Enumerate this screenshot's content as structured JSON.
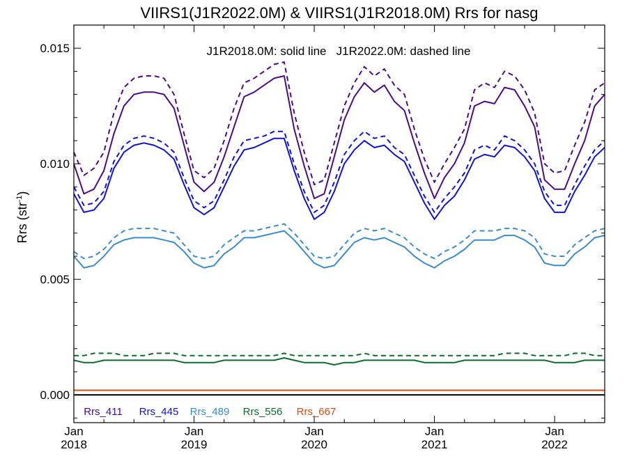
{
  "chart_data": {
    "type": "line",
    "title": "VIIRS1(J1R2022.0M) & VIIRS1(J1R2018.0M)  Rrs for nasg",
    "ylabel": "Rrs (str",
    "ylabel_sup": "-1",
    "ylabel_close": ")",
    "annotation": "J1R2018.0M: solid line   J1R2022.0M: dashed line",
    "ylim": [
      -0.0012,
      0.016
    ],
    "xlim": [
      0,
      53
    ],
    "yticks": [
      {
        "value": 0.0,
        "label": "0.000"
      },
      {
        "value": 0.005,
        "label": "0.005"
      },
      {
        "value": 0.01,
        "label": "0.010"
      },
      {
        "value": 0.015,
        "label": "0.015"
      }
    ],
    "xticks": [
      {
        "value": 0,
        "month": "Jan",
        "year": "2018"
      },
      {
        "value": 12,
        "month": "Jan",
        "year": "2019"
      },
      {
        "value": 24,
        "month": "Jan",
        "year": "2020"
      },
      {
        "value": 36,
        "month": "Jan",
        "year": "2021"
      },
      {
        "value": 48,
        "month": "Jan",
        "year": "2022"
      }
    ],
    "zero_line": 0.0,
    "series": [
      {
        "name": "Rrs_411",
        "color": "#4b0a8c",
        "solid": [
          0.01,
          0.0087,
          0.0089,
          0.0097,
          0.0113,
          0.0125,
          0.013,
          0.0131,
          0.0131,
          0.013,
          0.0124,
          0.0108,
          0.0092,
          0.0088,
          0.0092,
          0.0103,
          0.0116,
          0.0129,
          0.0131,
          0.0134,
          0.0137,
          0.0138,
          0.0115,
          0.0099,
          0.0085,
          0.0087,
          0.0103,
          0.0119,
          0.0129,
          0.0135,
          0.0131,
          0.0134,
          0.0127,
          0.0123,
          0.0109,
          0.0096,
          0.0085,
          0.0094,
          0.01,
          0.0109,
          0.0125,
          0.0127,
          0.0126,
          0.0133,
          0.0132,
          0.0125,
          0.0116,
          0.0093,
          0.0089,
          0.0089,
          0.01,
          0.011,
          0.0125,
          0.013
        ],
        "dashed": [
          0.0105,
          0.0095,
          0.0098,
          0.0105,
          0.0122,
          0.0133,
          0.0137,
          0.0138,
          0.0138,
          0.0137,
          0.013,
          0.0113,
          0.0097,
          0.0094,
          0.0098,
          0.011,
          0.0124,
          0.0135,
          0.0137,
          0.014,
          0.0143,
          0.0144,
          0.0122,
          0.0105,
          0.0091,
          0.0093,
          0.0109,
          0.0125,
          0.0135,
          0.0142,
          0.0138,
          0.0141,
          0.0134,
          0.013,
          0.0115,
          0.0102,
          0.0092,
          0.01,
          0.0107,
          0.0115,
          0.0132,
          0.0135,
          0.0133,
          0.014,
          0.0138,
          0.0132,
          0.0122,
          0.01,
          0.0096,
          0.0097,
          0.0108,
          0.0118,
          0.0132,
          0.0135
        ]
      },
      {
        "name": "Rrs_445",
        "color": "#1010e0",
        "solid": [
          0.0087,
          0.0079,
          0.008,
          0.0085,
          0.0098,
          0.0105,
          0.0108,
          0.0109,
          0.0108,
          0.0106,
          0.0102,
          0.0091,
          0.0081,
          0.0078,
          0.0081,
          0.009,
          0.0099,
          0.0106,
          0.0107,
          0.0109,
          0.0111,
          0.0111,
          0.0097,
          0.0085,
          0.0076,
          0.0079,
          0.0088,
          0.01,
          0.0106,
          0.011,
          0.0107,
          0.0108,
          0.0104,
          0.0101,
          0.0092,
          0.0083,
          0.0076,
          0.0082,
          0.0086,
          0.0093,
          0.0102,
          0.0104,
          0.0103,
          0.0108,
          0.0107,
          0.0103,
          0.0097,
          0.0085,
          0.0079,
          0.0079,
          0.0088,
          0.0095,
          0.0103,
          0.0107
        ],
        "dashed": [
          0.009,
          0.0082,
          0.0083,
          0.0088,
          0.0101,
          0.0108,
          0.0111,
          0.0112,
          0.0111,
          0.0109,
          0.0105,
          0.0094,
          0.0084,
          0.0081,
          0.0084,
          0.0093,
          0.0103,
          0.011,
          0.0111,
          0.0112,
          0.0114,
          0.0114,
          0.01,
          0.0088,
          0.0079,
          0.0082,
          0.0092,
          0.0104,
          0.011,
          0.0114,
          0.0111,
          0.0112,
          0.0107,
          0.0104,
          0.0095,
          0.0086,
          0.0079,
          0.0085,
          0.009,
          0.0096,
          0.0106,
          0.0108,
          0.0106,
          0.0112,
          0.011,
          0.0106,
          0.01,
          0.0088,
          0.0082,
          0.0082,
          0.0091,
          0.0099,
          0.0106,
          0.011
        ]
      },
      {
        "name": "Rrs_489",
        "color": "#3a8bd0",
        "solid": [
          0.006,
          0.0055,
          0.0056,
          0.006,
          0.0065,
          0.0067,
          0.0068,
          0.0068,
          0.0068,
          0.0067,
          0.0066,
          0.0062,
          0.0057,
          0.0055,
          0.0056,
          0.0061,
          0.0064,
          0.0068,
          0.0068,
          0.0069,
          0.007,
          0.0071,
          0.0067,
          0.0062,
          0.0057,
          0.0055,
          0.0056,
          0.0061,
          0.0066,
          0.0068,
          0.0067,
          0.0068,
          0.0066,
          0.0064,
          0.006,
          0.0057,
          0.0055,
          0.0058,
          0.006,
          0.0063,
          0.0067,
          0.0067,
          0.0067,
          0.0069,
          0.0069,
          0.0067,
          0.0064,
          0.0057,
          0.0056,
          0.0056,
          0.0061,
          0.0064,
          0.0068,
          0.0069
        ],
        "dashed": [
          0.0062,
          0.0059,
          0.006,
          0.0063,
          0.0068,
          0.0071,
          0.0072,
          0.0072,
          0.0072,
          0.0071,
          0.007,
          0.0065,
          0.006,
          0.0059,
          0.006,
          0.0065,
          0.0068,
          0.0071,
          0.0071,
          0.0072,
          0.0073,
          0.0074,
          0.007,
          0.0065,
          0.006,
          0.0059,
          0.006,
          0.0065,
          0.007,
          0.0072,
          0.0071,
          0.0072,
          0.007,
          0.0068,
          0.0064,
          0.0061,
          0.0059,
          0.0062,
          0.0064,
          0.0067,
          0.0071,
          0.0071,
          0.0071,
          0.0072,
          0.0072,
          0.0071,
          0.0068,
          0.0061,
          0.006,
          0.006,
          0.0065,
          0.0068,
          0.0071,
          0.0072
        ]
      },
      {
        "name": "Rrs_556",
        "color": "#0c6a2e",
        "solid": [
          0.0015,
          0.0014,
          0.0014,
          0.0015,
          0.0015,
          0.0015,
          0.0015,
          0.0015,
          0.0015,
          0.0015,
          0.0015,
          0.0014,
          0.0014,
          0.0014,
          0.0014,
          0.0015,
          0.0015,
          0.0015,
          0.0015,
          0.0015,
          0.0015,
          0.0016,
          0.0015,
          0.0014,
          0.0014,
          0.0014,
          0.0013,
          0.0014,
          0.0014,
          0.0015,
          0.0015,
          0.0015,
          0.0015,
          0.0015,
          0.0015,
          0.0014,
          0.0014,
          0.0014,
          0.0014,
          0.0015,
          0.0015,
          0.0015,
          0.0015,
          0.0015,
          0.0015,
          0.0015,
          0.0015,
          0.0015,
          0.0014,
          0.0014,
          0.0014,
          0.0015,
          0.0015,
          0.0015
        ],
        "dashed": [
          0.0017,
          0.0017,
          0.0018,
          0.0018,
          0.0018,
          0.0017,
          0.0017,
          0.0017,
          0.0018,
          0.0018,
          0.0018,
          0.0017,
          0.0017,
          0.0017,
          0.0017,
          0.0017,
          0.0017,
          0.0017,
          0.0017,
          0.0017,
          0.0017,
          0.0018,
          0.0017,
          0.0017,
          0.0017,
          0.0017,
          0.0017,
          0.0017,
          0.0017,
          0.0018,
          0.0017,
          0.0017,
          0.0017,
          0.0017,
          0.0017,
          0.0017,
          0.0017,
          0.0017,
          0.0017,
          0.0017,
          0.0017,
          0.0017,
          0.0017,
          0.0018,
          0.0018,
          0.0018,
          0.0017,
          0.0017,
          0.0017,
          0.0017,
          0.0018,
          0.0018,
          0.0017,
          0.0017
        ]
      },
      {
        "name": "Rrs_667",
        "color": "#e04a10",
        "solid": [
          0.0002,
          0.0002,
          0.0002,
          0.0002,
          0.0002,
          0.0002,
          0.0002,
          0.0002,
          0.0002,
          0.0002,
          0.0002,
          0.0002,
          0.0002,
          0.0002,
          0.0002,
          0.0002,
          0.0002,
          0.0002,
          0.0002,
          0.0002,
          0.0002,
          0.0002,
          0.0002,
          0.0002,
          0.0002,
          0.0002,
          0.0002,
          0.0002,
          0.0002,
          0.0002,
          0.0002,
          0.0002,
          0.0002,
          0.0002,
          0.0002,
          0.0002,
          0.0002,
          0.0002,
          0.0002,
          0.0002,
          0.0002,
          0.0002,
          0.0002,
          0.0002,
          0.0002,
          0.0002,
          0.0002,
          0.0002,
          0.0002,
          0.0002,
          0.0002,
          0.0002,
          0.0002,
          0.0002
        ],
        "dashed": [
          0.0002,
          0.0002,
          0.0002,
          0.0002,
          0.0002,
          0.0002,
          0.0002,
          0.0002,
          0.0002,
          0.0002,
          0.0002,
          0.0002,
          0.0002,
          0.0002,
          0.0002,
          0.0002,
          0.0002,
          0.0002,
          0.0002,
          0.0002,
          0.0002,
          0.0002,
          0.0002,
          0.0002,
          0.0002,
          0.0002,
          0.0002,
          0.0002,
          0.0002,
          0.0002,
          0.0002,
          0.0002,
          0.0002,
          0.0002,
          0.0002,
          0.0002,
          0.0002,
          0.0002,
          0.0002,
          0.0002,
          0.0002,
          0.0002,
          0.0002,
          0.0002,
          0.0002,
          0.0002,
          0.0002,
          0.0002,
          0.0002,
          0.0002,
          0.0002,
          0.0002,
          0.0002,
          0.0002
        ]
      }
    ]
  }
}
